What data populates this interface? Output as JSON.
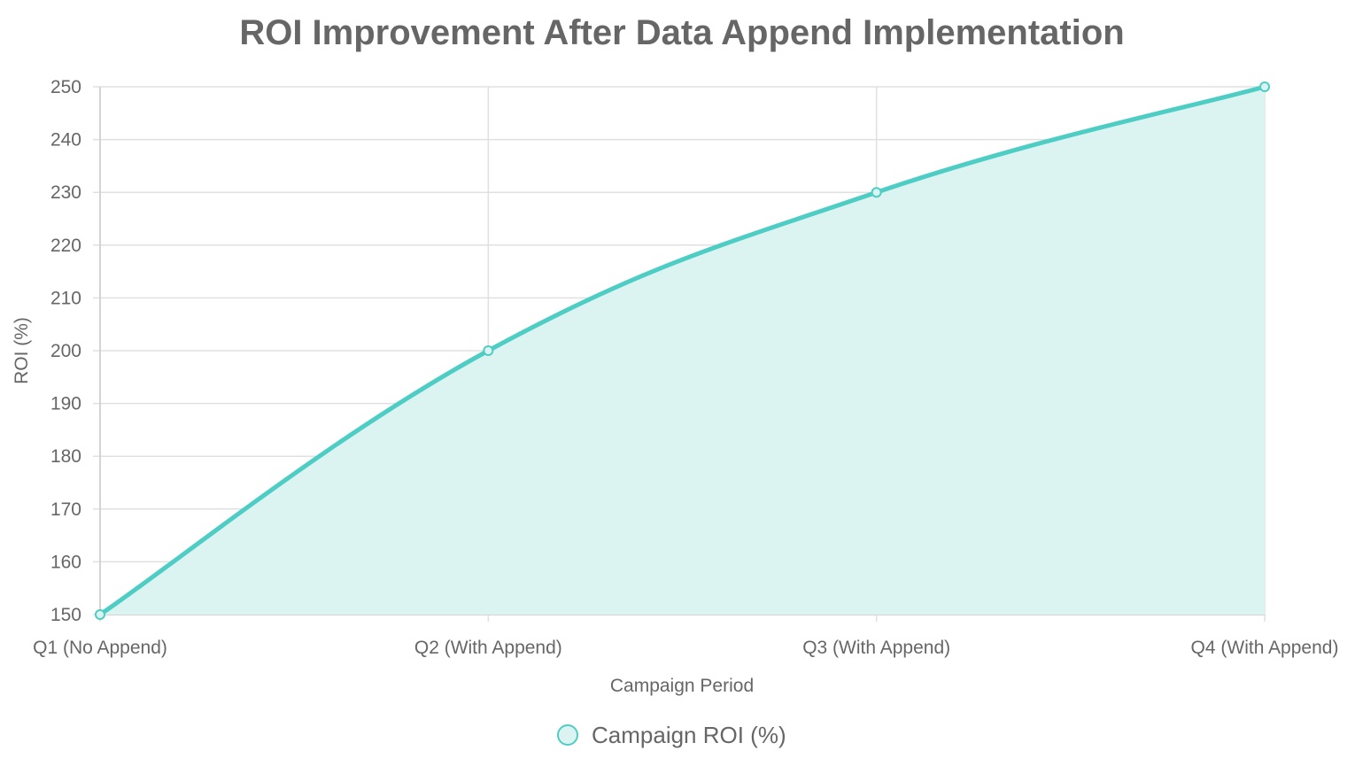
{
  "chart_data": {
    "type": "area",
    "title": "ROI Improvement After Data Append Implementation",
    "xlabel": "Campaign Period",
    "ylabel": "ROI (%)",
    "categories": [
      "Q1 (No Append)",
      "Q2 (With Append)",
      "Q3 (With Append)",
      "Q4 (With Append)"
    ],
    "series": [
      {
        "name": "Campaign ROI (%)",
        "values": [
          150,
          200,
          230,
          250
        ]
      }
    ],
    "ylim": [
      150,
      250
    ],
    "yticks": [
      150,
      160,
      170,
      180,
      190,
      200,
      210,
      220,
      230,
      240,
      250
    ],
    "grid": true,
    "legend": "bottom",
    "colors": {
      "line": "#4ecdc4",
      "fill": "#dcf4f1",
      "grid": "#e0e0e0",
      "text": "#666666"
    }
  }
}
